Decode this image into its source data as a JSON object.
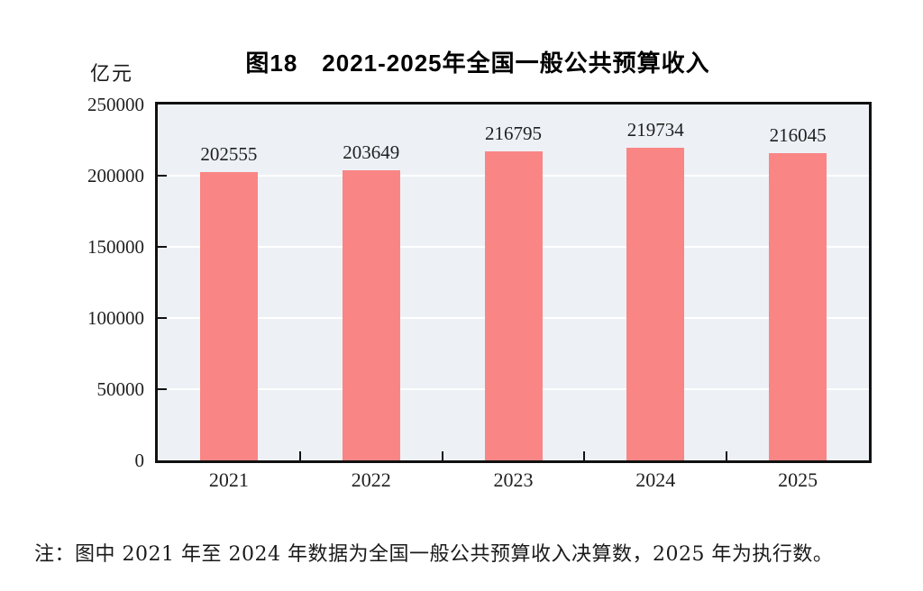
{
  "chart_data": {
    "type": "bar",
    "title": "图18　2021-2025年全国一般公共预算收入",
    "unit_label": "亿元",
    "categories": [
      "2021",
      "2022",
      "2023",
      "2024",
      "2025"
    ],
    "values": [
      202555,
      203649,
      216795,
      219734,
      216045
    ],
    "value_labels_shown": true,
    "ylim": [
      0,
      250000
    ],
    "yticks": [
      0,
      50000,
      100000,
      150000,
      200000,
      250000
    ],
    "grid": "horizontal white gridlines at each y tick",
    "legend": "none",
    "note": "注：图中 2021 年至 2024 年数据为全国一般公共预算收入决算数，2025 年为执行数。",
    "colors": {
      "bar_fill": "#FA8585",
      "plot_background": "#EDF1F6",
      "axis_border": "#111111",
      "gridline": "#FFFFFF",
      "text": "#1A1A1A",
      "page_background": "#FFFFFF"
    }
  }
}
